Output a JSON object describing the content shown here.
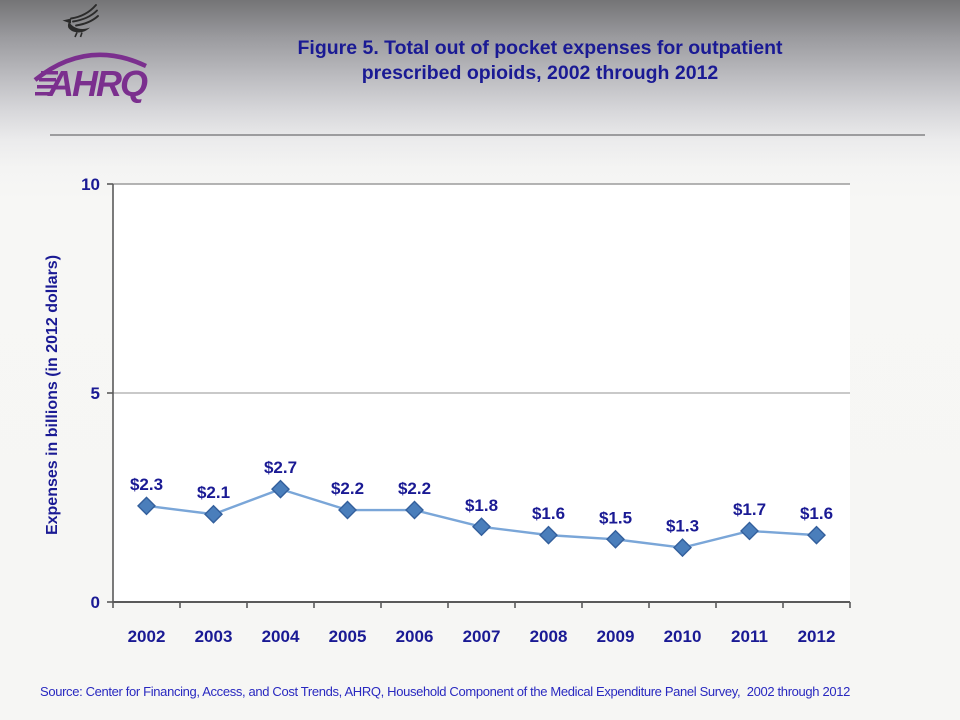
{
  "header": {
    "title_line1": "Figure 5. Total out of pocket expenses for outpatient",
    "title_line2": "prescribed opioids, 2002 through 2012",
    "logo_text": "AHRQ"
  },
  "footer": {
    "source": "Source: Center for Financing, Access, and Cost Trends, AHRQ, Household Component of the Medical Expenditure Panel Survey,  2002 through 2012"
  },
  "colors": {
    "title_navy": "#1a1a94",
    "source_blue": "#2929c0",
    "logo_purple": "#7b2f8e",
    "eagle_dark": "#2b2b2b",
    "series_line": "#7aa6d8",
    "marker_fill": "#4a7ebb",
    "marker_edge": "#335f9c",
    "axis_gray": "#5a5a5a",
    "gridline_gray": "#a9a9a9",
    "plot_border_gray": "#a9a9a9",
    "plot_background": "#ffffff"
  },
  "chart_data": {
    "type": "line",
    "title": "Figure 5. Total out of pocket expenses for outpatient prescribed opioids, 2002 through 2012",
    "categories": [
      "2002",
      "2003",
      "2004",
      "2005",
      "2006",
      "2007",
      "2008",
      "2009",
      "2010",
      "2011",
      "2012"
    ],
    "values": [
      2.3,
      2.1,
      2.7,
      2.2,
      2.2,
      1.8,
      1.6,
      1.5,
      1.3,
      1.7,
      1.6
    ],
    "labels": [
      "$2.3",
      "$2.1",
      "$2.7",
      "$2.2",
      "$2.2",
      "$1.8",
      "$1.6",
      "$1.5",
      "$1.3",
      "$1.7",
      "$1.6"
    ],
    "xlabel": "",
    "ylabel": "Expenses in billions (in 2012 dollars)",
    "ylim": [
      0,
      10
    ],
    "yticks": [
      0,
      5,
      10
    ],
    "grid": "horizontal-major",
    "legend": "none",
    "marker": "diamond"
  }
}
